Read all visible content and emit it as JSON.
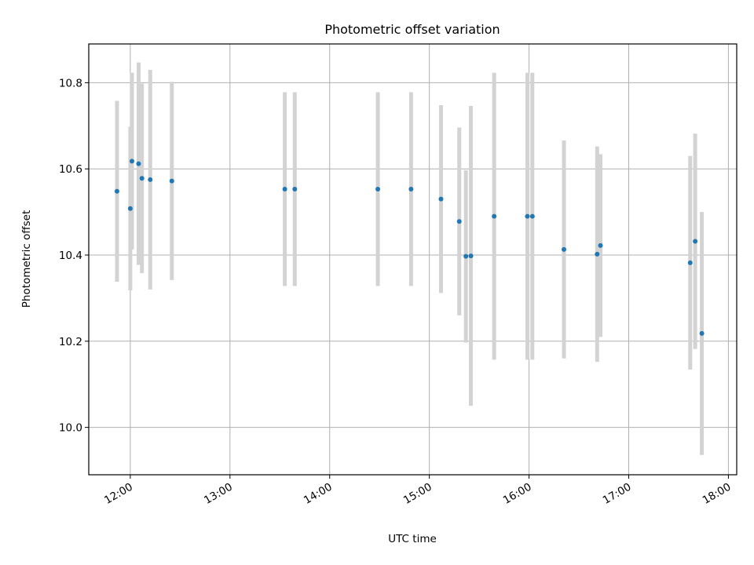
{
  "chart_data": {
    "type": "scatter",
    "title": "Photometric offset variation",
    "xlabel": "UTC time",
    "ylabel": "Photometric offset",
    "x_axis_type": "time",
    "xlim": [
      "11:35",
      "18:05"
    ],
    "ylim": [
      9.89,
      10.89
    ],
    "x_ticks": [
      "12:00",
      "13:00",
      "14:00",
      "15:00",
      "16:00",
      "17:00",
      "18:00"
    ],
    "y_ticks": [
      "10.0",
      "10.2",
      "10.4",
      "10.6",
      "10.8"
    ],
    "grid": true,
    "legend": "none",
    "colors": {
      "point": "#1f77b4",
      "errorbar": "#d3d3d3",
      "grid": "#b0b0b0"
    },
    "points": [
      {
        "x": "11:52",
        "y": 10.548,
        "yerr": 0.21
      },
      {
        "x": "12:00",
        "y": 10.508,
        "yerr": 0.19
      },
      {
        "x": "12:01",
        "y": 10.618,
        "yerr": 0.205
      },
      {
        "x": "12:05",
        "y": 10.612,
        "yerr": 0.235
      },
      {
        "x": "12:07",
        "y": 10.578,
        "yerr": 0.22
      },
      {
        "x": "12:12",
        "y": 10.575,
        "yerr": 0.255
      },
      {
        "x": "12:25",
        "y": 10.572,
        "yerr": 0.23
      },
      {
        "x": "13:33",
        "y": 10.553,
        "yerr": 0.225
      },
      {
        "x": "13:39",
        "y": 10.553,
        "yerr": 0.225
      },
      {
        "x": "14:29",
        "y": 10.553,
        "yerr": 0.225
      },
      {
        "x": "14:49",
        "y": 10.553,
        "yerr": 0.225
      },
      {
        "x": "15:07",
        "y": 10.53,
        "yerr": 0.218
      },
      {
        "x": "15:18",
        "y": 10.478,
        "yerr": 0.218
      },
      {
        "x": "15:22",
        "y": 10.397,
        "yerr": 0.2
      },
      {
        "x": "15:25",
        "y": 10.398,
        "yerr": 0.348
      },
      {
        "x": "15:39",
        "y": 10.49,
        "yerr": 0.333
      },
      {
        "x": "15:59",
        "y": 10.49,
        "yerr": 0.333
      },
      {
        "x": "16:02",
        "y": 10.49,
        "yerr": 0.333
      },
      {
        "x": "16:21",
        "y": 10.413,
        "yerr": 0.253
      },
      {
        "x": "16:41",
        "y": 10.402,
        "yerr": 0.25
      },
      {
        "x": "16:43",
        "y": 10.422,
        "yerr": 0.212
      },
      {
        "x": "17:37",
        "y": 10.382,
        "yerr": 0.248
      },
      {
        "x": "17:40",
        "y": 10.432,
        "yerr": 0.25
      },
      {
        "x": "17:44",
        "y": 10.218,
        "yerr": 0.282
      }
    ]
  }
}
